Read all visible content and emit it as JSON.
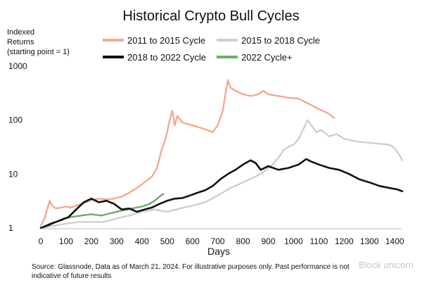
{
  "chart_data": {
    "type": "line",
    "title": "Historical Crypto Bull Cycles",
    "ylabel_lines": [
      "Indexed",
      "Returns",
      "(starting point = 1)"
    ],
    "xlabel": "Days",
    "y_scale": "log",
    "ylim": [
      1,
      1000
    ],
    "xlim": [
      0,
      1430
    ],
    "x_ticks": [
      0,
      100,
      200,
      300,
      400,
      500,
      600,
      700,
      800,
      900,
      1000,
      1100,
      1200,
      1300,
      1400
    ],
    "y_ticks": [
      1,
      10,
      100,
      1000
    ],
    "grid": false,
    "legend_position": "top",
    "series": [
      {
        "name": "2011 to 2015 Cycle",
        "color": "#f6a98d",
        "points": [
          [
            0,
            1.1
          ],
          [
            15,
            1.5
          ],
          [
            25,
            2.2
          ],
          [
            35,
            3.2
          ],
          [
            45,
            2.6
          ],
          [
            60,
            2.3
          ],
          [
            80,
            2.4
          ],
          [
            100,
            2.5
          ],
          [
            120,
            2.4
          ],
          [
            140,
            2.6
          ],
          [
            160,
            2.8
          ],
          [
            180,
            3.0
          ],
          [
            200,
            3.3
          ],
          [
            230,
            3.5
          ],
          [
            260,
            3.4
          ],
          [
            290,
            3.5
          ],
          [
            320,
            3.8
          ],
          [
            350,
            4.5
          ],
          [
            380,
            5.5
          ],
          [
            410,
            7
          ],
          [
            440,
            9
          ],
          [
            460,
            13
          ],
          [
            470,
            20
          ],
          [
            480,
            30
          ],
          [
            490,
            40
          ],
          [
            500,
            60
          ],
          [
            510,
            100
          ],
          [
            520,
            150
          ],
          [
            530,
            80
          ],
          [
            540,
            120
          ],
          [
            560,
            90
          ],
          [
            600,
            80
          ],
          [
            640,
            70
          ],
          [
            680,
            60
          ],
          [
            700,
            80
          ],
          [
            720,
            150
          ],
          [
            730,
            300
          ],
          [
            740,
            550
          ],
          [
            750,
            400
          ],
          [
            770,
            350
          ],
          [
            800,
            300
          ],
          [
            830,
            280
          ],
          [
            860,
            300
          ],
          [
            880,
            350
          ],
          [
            900,
            300
          ],
          [
            940,
            280
          ],
          [
            980,
            260
          ],
          [
            1020,
            250
          ],
          [
            1060,
            200
          ],
          [
            1100,
            160
          ],
          [
            1140,
            130
          ],
          [
            1160,
            110
          ]
        ]
      },
      {
        "name": "2015 to 2018 Cycle",
        "color": "#cfcfcf",
        "points": [
          [
            0,
            1.0
          ],
          [
            50,
            1.1
          ],
          [
            100,
            1.2
          ],
          [
            150,
            1.3
          ],
          [
            200,
            1.3
          ],
          [
            250,
            1.3
          ],
          [
            300,
            1.5
          ],
          [
            350,
            1.7
          ],
          [
            400,
            2.0
          ],
          [
            450,
            2.2
          ],
          [
            500,
            2.0
          ],
          [
            550,
            2.3
          ],
          [
            600,
            2.6
          ],
          [
            650,
            3.0
          ],
          [
            700,
            4.0
          ],
          [
            750,
            5.5
          ],
          [
            800,
            7
          ],
          [
            850,
            9
          ],
          [
            880,
            11
          ],
          [
            910,
            14
          ],
          [
            940,
            20
          ],
          [
            960,
            28
          ],
          [
            980,
            32
          ],
          [
            1000,
            35
          ],
          [
            1020,
            45
          ],
          [
            1040,
            70
          ],
          [
            1055,
            100
          ],
          [
            1070,
            80
          ],
          [
            1090,
            60
          ],
          [
            1110,
            65
          ],
          [
            1140,
            50
          ],
          [
            1170,
            55
          ],
          [
            1200,
            45
          ],
          [
            1250,
            40
          ],
          [
            1300,
            38
          ],
          [
            1350,
            36
          ],
          [
            1380,
            35
          ],
          [
            1400,
            30
          ],
          [
            1420,
            22
          ],
          [
            1430,
            18
          ]
        ]
      },
      {
        "name": "2018 to 2022 Cycle",
        "color": "#111111",
        "points": [
          [
            0,
            1.0
          ],
          [
            40,
            1.2
          ],
          [
            80,
            1.4
          ],
          [
            110,
            1.6
          ],
          [
            140,
            2.2
          ],
          [
            170,
            3.0
          ],
          [
            200,
            3.5
          ],
          [
            230,
            3.0
          ],
          [
            260,
            3.2
          ],
          [
            290,
            2.8
          ],
          [
            320,
            2.2
          ],
          [
            350,
            2.3
          ],
          [
            380,
            2.0
          ],
          [
            410,
            2.2
          ],
          [
            440,
            2.4
          ],
          [
            470,
            2.8
          ],
          [
            500,
            3.2
          ],
          [
            530,
            3.5
          ],
          [
            560,
            3.6
          ],
          [
            590,
            4.0
          ],
          [
            620,
            4.5
          ],
          [
            650,
            5.0
          ],
          [
            680,
            6
          ],
          [
            710,
            8
          ],
          [
            740,
            10
          ],
          [
            770,
            12
          ],
          [
            800,
            15
          ],
          [
            830,
            18
          ],
          [
            850,
            16
          ],
          [
            870,
            12
          ],
          [
            900,
            14
          ],
          [
            940,
            12
          ],
          [
            980,
            13
          ],
          [
            1020,
            15
          ],
          [
            1050,
            19
          ],
          [
            1070,
            17
          ],
          [
            1100,
            15
          ],
          [
            1140,
            13
          ],
          [
            1180,
            12
          ],
          [
            1220,
            10
          ],
          [
            1260,
            8
          ],
          [
            1300,
            7
          ],
          [
            1340,
            6
          ],
          [
            1380,
            5.5
          ],
          [
            1410,
            5.2
          ],
          [
            1430,
            4.8
          ]
        ]
      },
      {
        "name": "2022 Cycle+",
        "color": "#6fac6c",
        "points": [
          [
            0,
            1.0
          ],
          [
            30,
            1.1
          ],
          [
            60,
            1.3
          ],
          [
            90,
            1.5
          ],
          [
            120,
            1.6
          ],
          [
            160,
            1.7
          ],
          [
            200,
            1.8
          ],
          [
            240,
            1.7
          ],
          [
            280,
            1.9
          ],
          [
            320,
            2.1
          ],
          [
            360,
            2.3
          ],
          [
            400,
            2.5
          ],
          [
            430,
            2.8
          ],
          [
            450,
            3.2
          ],
          [
            470,
            3.8
          ],
          [
            485,
            4.3
          ]
        ]
      }
    ]
  },
  "source_lines": [
    "Source: Glassnode, Data as of March 21, 2024. For illustrative purposes only. Past performance is not",
    "indicative of future results"
  ],
  "watermark": "Block unicorn"
}
